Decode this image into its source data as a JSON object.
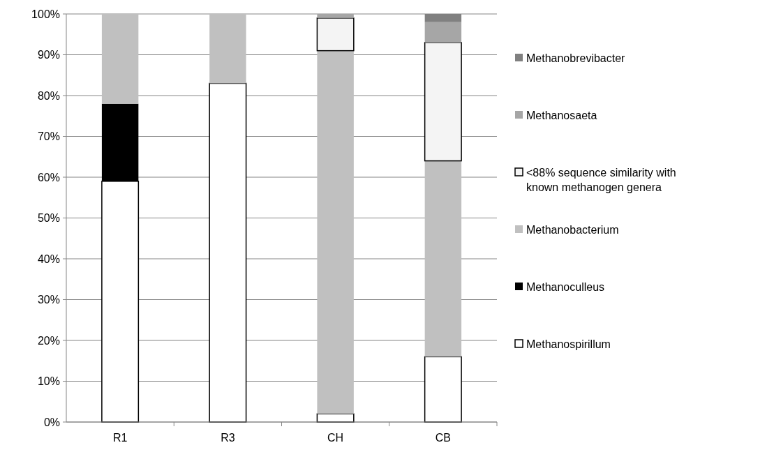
{
  "chart_data": {
    "type": "bar",
    "stacked": true,
    "categories": [
      "R1",
      "R3",
      "CH",
      "CB"
    ],
    "series": [
      {
        "name": "Methanospirillum",
        "color": "#ffffff",
        "values": [
          59,
          83,
          2,
          16
        ]
      },
      {
        "name": "Methanoculleus",
        "color": "#000000",
        "values": [
          19,
          0,
          0,
          0
        ]
      },
      {
        "name": "Methanobacterium",
        "color": "#c0c0c0",
        "values": [
          22,
          17,
          89,
          48
        ]
      },
      {
        "name": "<88% sequence similarity with known methanogen genera",
        "color": "#f4f4f4",
        "values": [
          0,
          0,
          8,
          29
        ]
      },
      {
        "name": "Methanosaeta",
        "color": "#a6a6a6",
        "values": [
          0,
          0,
          1,
          5
        ]
      },
      {
        "name": "Methanobrevibacter",
        "color": "#808080",
        "values": [
          0,
          0,
          0,
          2
        ]
      }
    ],
    "ylim": [
      0,
      100
    ],
    "yticks": [
      {
        "value": 0,
        "label": "0%"
      },
      {
        "value": 10,
        "label": "10%"
      },
      {
        "value": 20,
        "label": "20%"
      },
      {
        "value": 30,
        "label": "30%"
      },
      {
        "value": 40,
        "label": "40%"
      },
      {
        "value": 50,
        "label": "50%"
      },
      {
        "value": 60,
        "label": "60%"
      },
      {
        "value": 70,
        "label": "70%"
      },
      {
        "value": 80,
        "label": "80%"
      },
      {
        "value": 90,
        "label": "90%"
      },
      {
        "value": 100,
        "label": "100%"
      }
    ],
    "grid": "y",
    "legend": "right"
  }
}
